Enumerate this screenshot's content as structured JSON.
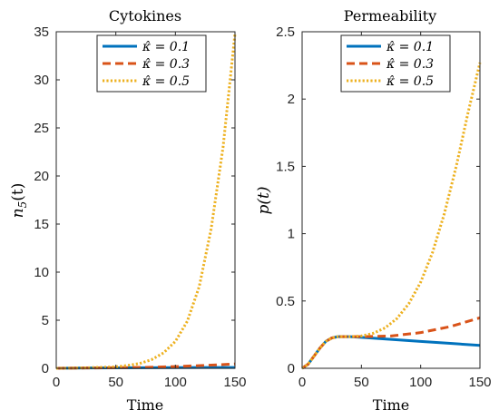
{
  "chart_data": [
    {
      "type": "line",
      "title": "Cytokines",
      "xlabel": "Time",
      "ylabel": "n_5(t)",
      "ylabel_text": "n",
      "ylabel_sub": "5",
      "ylabel_tail": "(t)",
      "xlim": [
        0,
        150
      ],
      "ylim": [
        0,
        35
      ],
      "xticks": [
        0,
        50,
        100,
        150
      ],
      "yticks": [
        0,
        5,
        10,
        15,
        20,
        25,
        30,
        35
      ],
      "grid": false,
      "legend_position": "top",
      "series": [
        {
          "name": "κ̂ = 0.1",
          "color": "#0072BD",
          "style": "solid",
          "x": [
            0,
            25,
            50,
            75,
            100,
            125,
            150
          ],
          "y": [
            0,
            0.03,
            0.05,
            0.06,
            0.07,
            0.08,
            0.08
          ]
        },
        {
          "name": "κ̂ = 0.3",
          "color": "#D95319",
          "style": "dashed",
          "x": [
            0,
            25,
            50,
            75,
            100,
            125,
            150
          ],
          "y": [
            0,
            0.03,
            0.06,
            0.1,
            0.18,
            0.3,
            0.45
          ]
        },
        {
          "name": "κ̂ = 0.5",
          "color": "#EDB120",
          "style": "dotted",
          "x": [
            0,
            25,
            50,
            60,
            70,
            80,
            90,
            100,
            110,
            120,
            130,
            140,
            150
          ],
          "y": [
            0,
            0.05,
            0.15,
            0.3,
            0.5,
            0.9,
            1.6,
            2.8,
            4.9,
            8.5,
            14.5,
            23.0,
            34.8
          ]
        }
      ]
    },
    {
      "type": "line",
      "title": "Permeability",
      "xlabel": "Time",
      "ylabel": "p(t)",
      "xlim": [
        0,
        150
      ],
      "ylim": [
        0,
        2.5
      ],
      "xticks": [
        0,
        50,
        100,
        150
      ],
      "yticks": [
        0,
        0.5,
        1,
        1.5,
        2,
        2.5
      ],
      "grid": false,
      "legend_position": "top",
      "series": [
        {
          "name": "κ̂ = 0.1",
          "color": "#0072BD",
          "style": "solid",
          "x": [
            0,
            5,
            10,
            15,
            20,
            25,
            30,
            40,
            50,
            75,
            100,
            125,
            150
          ],
          "y": [
            0,
            0.03,
            0.09,
            0.15,
            0.2,
            0.225,
            0.235,
            0.235,
            0.23,
            0.215,
            0.2,
            0.185,
            0.17
          ]
        },
        {
          "name": "κ̂ = 0.3",
          "color": "#D95319",
          "style": "dashed",
          "x": [
            0,
            5,
            10,
            15,
            20,
            25,
            30,
            40,
            50,
            75,
            100,
            125,
            150
          ],
          "y": [
            0,
            0.03,
            0.09,
            0.15,
            0.2,
            0.225,
            0.235,
            0.235,
            0.235,
            0.24,
            0.265,
            0.31,
            0.375
          ]
        },
        {
          "name": "κ̂ = 0.5",
          "color": "#EDB120",
          "style": "dotted",
          "x": [
            0,
            5,
            10,
            15,
            20,
            25,
            30,
            40,
            50,
            60,
            70,
            80,
            90,
            100,
            110,
            120,
            130,
            140,
            150
          ],
          "y": [
            0,
            0.03,
            0.09,
            0.15,
            0.2,
            0.225,
            0.235,
            0.235,
            0.24,
            0.26,
            0.3,
            0.37,
            0.48,
            0.64,
            0.86,
            1.15,
            1.5,
            1.9,
            2.27
          ]
        }
      ]
    }
  ],
  "legend_labels": [
    {
      "prefix": "κ̂ = ",
      "value": "0.1"
    },
    {
      "prefix": "κ̂ = ",
      "value": "0.3"
    },
    {
      "prefix": "κ̂ = ",
      "value": "0.5"
    }
  ]
}
